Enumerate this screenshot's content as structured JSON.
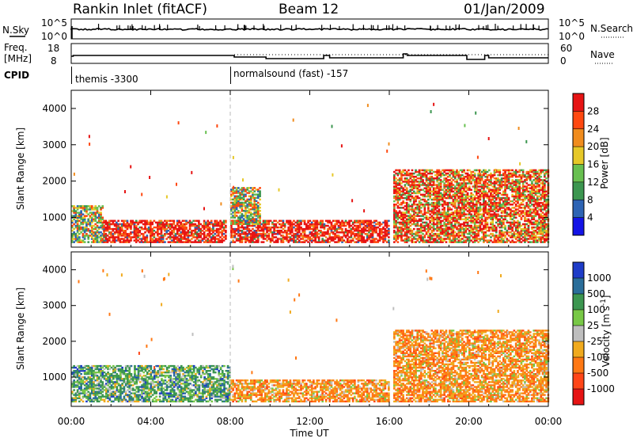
{
  "header": {
    "station": "Rankin Inlet (fitACF)",
    "beam": "Beam 12",
    "date": "01/Jan/2009"
  },
  "panels": {
    "nsky": {
      "label": "N.Sky",
      "tick_top": "10^5",
      "tick_bottom": "10^0",
      "right_label": "N.Search",
      "right_tick_top": "10^5",
      "right_tick_bottom": "10^0"
    },
    "freq": {
      "label_line1": "Freq.",
      "label_line2": "[MHz]",
      "left_tick_top": "18",
      "left_tick_bottom": "8",
      "right_label": "Nave",
      "right_tick_top": "60",
      "right_tick_bottom": "0"
    },
    "cpid": {
      "label": "CPID",
      "modes": [
        {
          "name": "themis -3300",
          "start_hour": 0
        },
        {
          "name": "normalsound (fast) -157",
          "start_hour": 8
        }
      ]
    }
  },
  "colors": {
    "power": [
      "#1414e6",
      "#2e64b4",
      "#3c9650",
      "#68c050",
      "#e6c828",
      "#f08c1e",
      "#ff4810",
      "#e61414"
    ],
    "velocity": [
      "#1e3cc8",
      "#2a6e9a",
      "#3c9650",
      "#78c846",
      "#bebebe",
      "#f0aa1e",
      "#ff7814",
      "#ff4618",
      "#e61414"
    ],
    "marker_line": "#bbbbbb"
  },
  "chart_data": [
    {
      "type": "heatmap",
      "title": "Power",
      "ylabel": "Slant Range [km]",
      "xlabel": "Time UT",
      "xlim": [
        "00:00",
        "24:00"
      ],
      "ylim": [
        180,
        4500
      ],
      "x_ticks": [
        "00:00",
        "04:00",
        "08:00",
        "12:00",
        "16:00",
        "20:00",
        "00:00"
      ],
      "y_ticks": [
        1000,
        2000,
        3000,
        4000
      ],
      "colorbar": {
        "label": "Power [dB]",
        "range": [
          0,
          32
        ],
        "ticks": [
          4,
          8,
          12,
          16,
          20,
          24,
          28
        ]
      },
      "echo_regions": [
        {
          "t0": 0.0,
          "t1": 1.6,
          "r0": 300,
          "r1": 1300,
          "level": "moderate"
        },
        {
          "t0": 1.6,
          "t1": 7.8,
          "r0": 300,
          "r1": 900,
          "level": "strong"
        },
        {
          "t0": 8.0,
          "t1": 16.0,
          "r0": 300,
          "r1": 900,
          "level": "strong"
        },
        {
          "t0": 8.0,
          "t1": 9.5,
          "r0": 800,
          "r1": 1800,
          "level": "moderate"
        },
        {
          "t0": 16.2,
          "t1": 24.0,
          "r0": 300,
          "r1": 2300,
          "level": "mixed"
        }
      ]
    },
    {
      "type": "heatmap",
      "title": "Velocity",
      "ylabel": "Slant Range [km]",
      "xlabel": "Time UT",
      "xlim": [
        "00:00",
        "24:00"
      ],
      "ylim": [
        180,
        4500
      ],
      "x_ticks": [
        "00:00",
        "04:00",
        "08:00",
        "12:00",
        "16:00",
        "20:00",
        "00:00"
      ],
      "y_ticks": [
        1000,
        2000,
        3000,
        4000
      ],
      "colorbar": {
        "label": "Velocity [m s^-1]",
        "ticks": [
          1000,
          500,
          100,
          25,
          -25,
          -100,
          -500,
          -1000
        ]
      },
      "echo_regions": [
        {
          "t0": 0.0,
          "t1": 8.0,
          "r0": 300,
          "r1": 1300,
          "sign": "positive"
        },
        {
          "t0": 8.0,
          "t1": 16.0,
          "r0": 300,
          "r1": 900,
          "sign": "negative"
        },
        {
          "t0": 16.2,
          "t1": 24.0,
          "r0": 300,
          "r1": 2300,
          "sign": "negative"
        }
      ]
    }
  ]
}
